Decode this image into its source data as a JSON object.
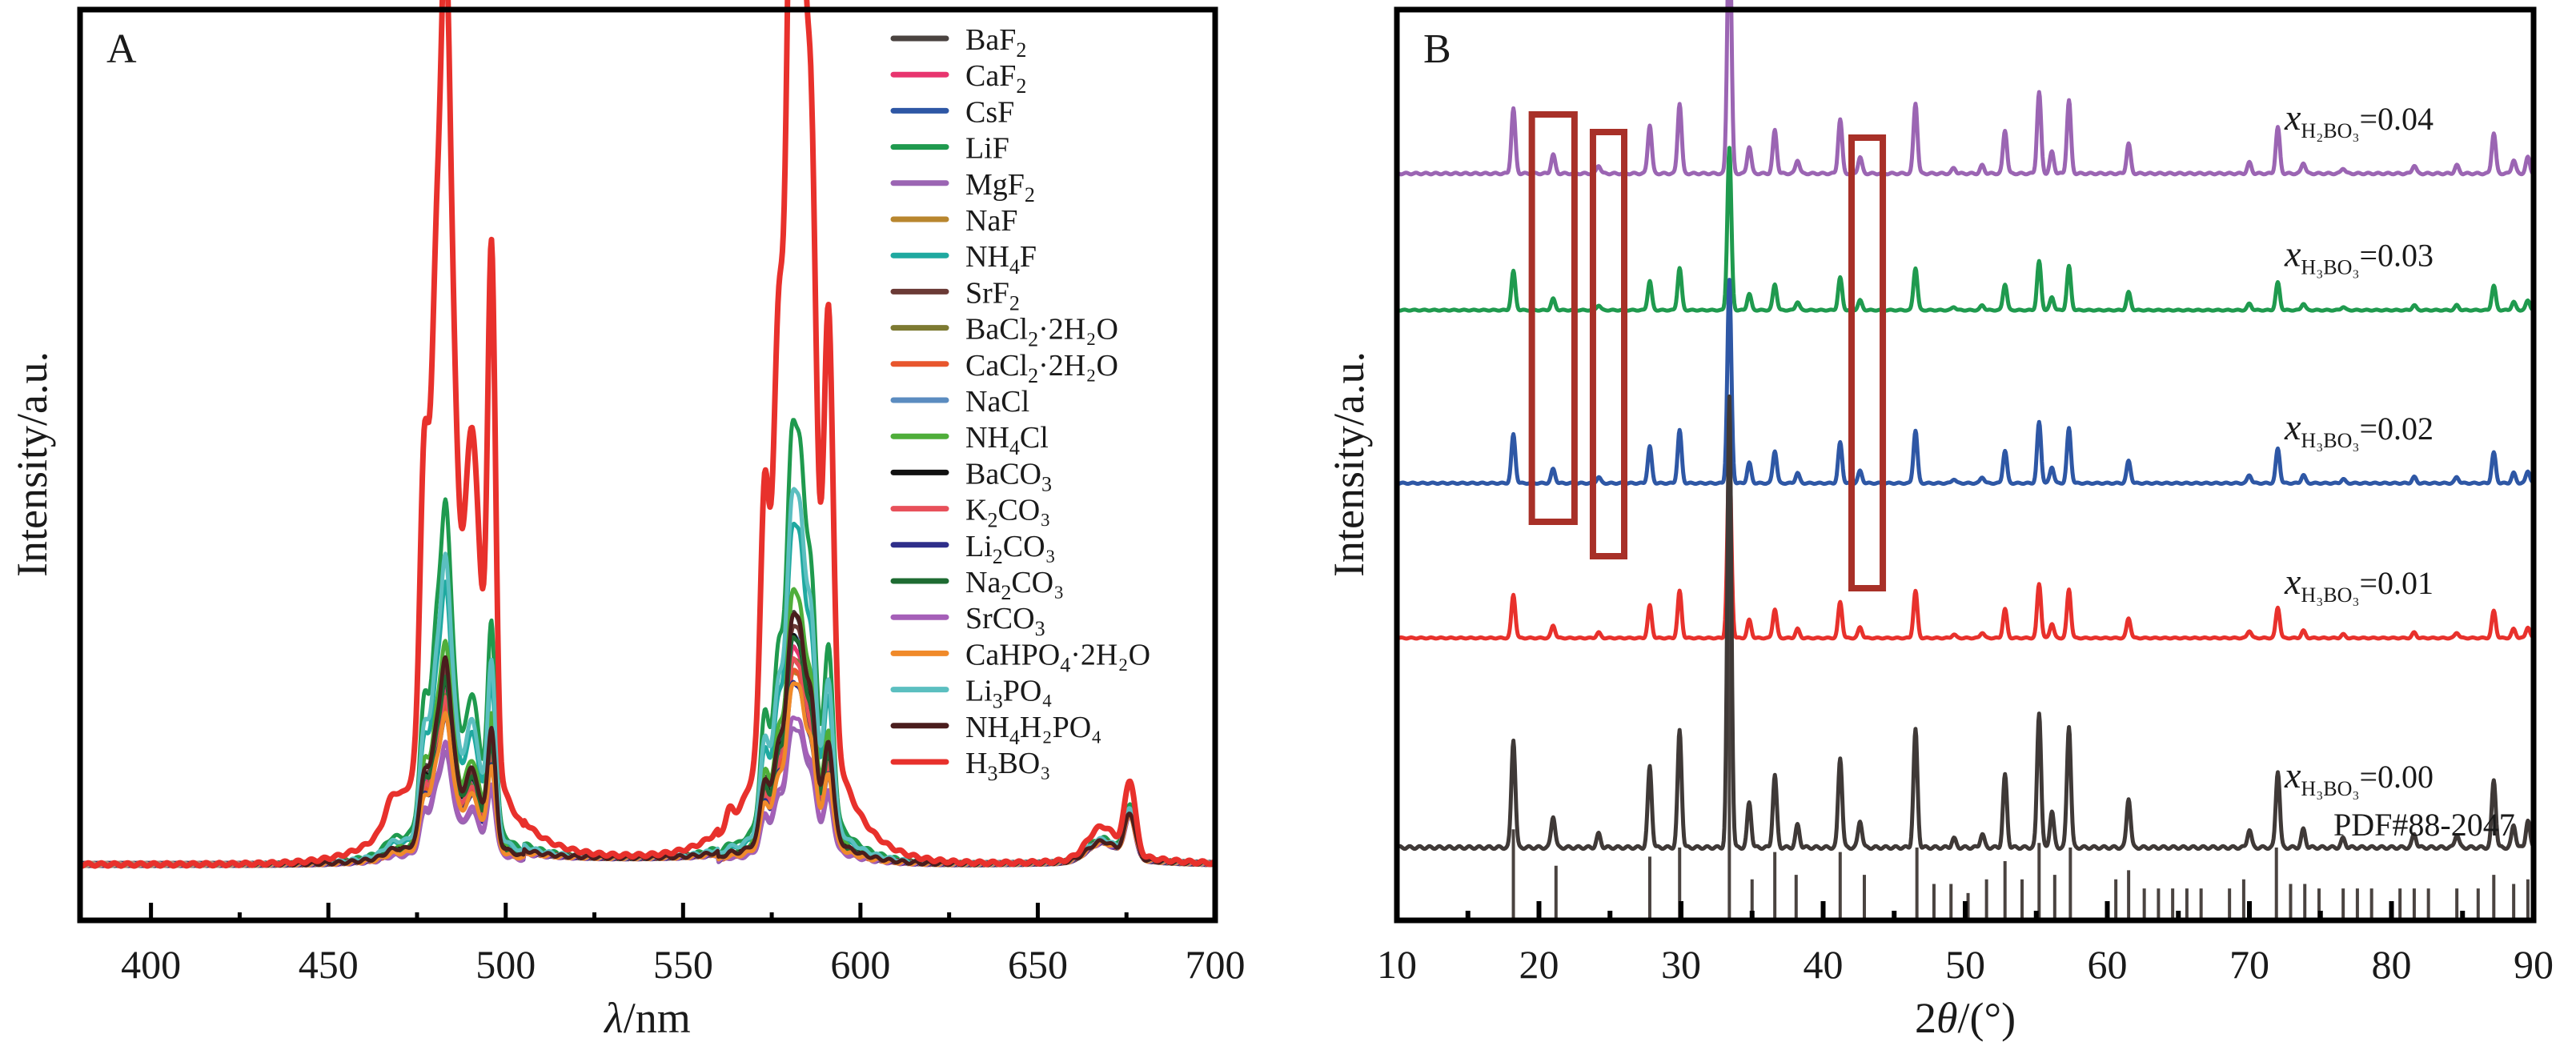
{
  "chart_data": [
    {
      "panel": "A",
      "type": "line",
      "xlabel": "λ/nm",
      "ylabel": "Intensity/a.u.",
      "xlim": [
        380,
        700
      ],
      "ylim": [
        0,
        1.0
      ],
      "x_ticks": [
        400,
        450,
        500,
        550,
        600,
        650,
        700
      ],
      "x_minor_ticks": [
        425,
        475,
        525,
        575,
        625,
        675
      ],
      "legend_position": "top-right",
      "grid": false,
      "baseline": 0.005,
      "series": [
        {
          "name": "BaF2",
          "label_main": "BaF",
          "label_sub": "2",
          "label_rest": "",
          "color": "#4a4340",
          "scale": 0.22
        },
        {
          "name": "CaF2",
          "label_main": "CaF",
          "label_sub": "2",
          "label_rest": "",
          "color": "#e8356f",
          "scale": 0.19
        },
        {
          "name": "CsF",
          "label_main": "CsF",
          "label_sub": "",
          "label_rest": "",
          "color": "#2e57a5",
          "scale": 0.2
        },
        {
          "name": "LiF",
          "label_main": "LiF",
          "label_sub": "",
          "label_rest": "",
          "color": "#1f9a4e",
          "scale": 0.39
        },
        {
          "name": "MgF2",
          "label_main": "MgF",
          "label_sub": "2",
          "label_rest": "",
          "color": "#9b65b3",
          "scale": 0.12
        },
        {
          "name": "NaF",
          "label_main": "NaF",
          "label_sub": "",
          "label_rest": "",
          "color": "#b8862e",
          "scale": 0.17
        },
        {
          "name": "NH4F",
          "label_main": "NH",
          "label_sub": "4",
          "label_rest": "F",
          "color": "#1fa9a0",
          "scale": 0.3
        },
        {
          "name": "SrF2",
          "label_main": "SrF",
          "label_sub": "2",
          "label_rest": "",
          "color": "#6b3a36",
          "scale": 0.21
        },
        {
          "name": "BaCl2·2H2O",
          "label_main": "BaCl",
          "label_sub": "2",
          "label_rest": "·2H₂O",
          "color": "#7d7a32",
          "scale": 0.18
        },
        {
          "name": "CaCl2·2H2O",
          "label_main": "CaCl",
          "label_sub": "2",
          "label_rest": "·2H₂O",
          "color": "#e8562d",
          "scale": 0.17
        },
        {
          "name": "NaCl",
          "label_main": "NaCl",
          "label_sub": "",
          "label_rest": "",
          "color": "#5b8cc0",
          "scale": 0.2
        },
        {
          "name": "NH4Cl",
          "label_main": "NH",
          "label_sub": "4",
          "label_rest": "Cl",
          "color": "#4fae3a",
          "scale": 0.24
        },
        {
          "name": "BaCO3",
          "label_main": "BaCO",
          "label_sub": "3",
          "label_rest": "",
          "color": "#111111",
          "scale": 0.2
        },
        {
          "name": "K2CO3",
          "label_main": "K",
          "label_sub": "2",
          "label_rest": "CO₃",
          "color": "#e8505a",
          "scale": 0.18
        },
        {
          "name": "Li2CO3",
          "label_main": "Li",
          "label_sub": "2",
          "label_rest": "CO₃",
          "color": "#2e2e8a",
          "scale": 0.16
        },
        {
          "name": "Na2CO3",
          "label_main": "Na",
          "label_sub": "2",
          "label_rest": "CO₃",
          "color": "#1e6b32",
          "scale": 0.2
        },
        {
          "name": "SrCO3",
          "label_main": "SrCO",
          "label_sub": "3",
          "label_rest": "",
          "color": "#a55fb8",
          "scale": 0.13
        },
        {
          "name": "CaHPO4·2H2O",
          "label_main": "CaHPO",
          "label_sub": "4",
          "label_rest": "·2H₂O",
          "color": "#f08a2a",
          "scale": 0.16
        },
        {
          "name": "Li3PO4",
          "label_main": "Li",
          "label_sub": "3",
          "label_rest": "PO₄",
          "color": "#5bbfc0",
          "scale": 0.33
        },
        {
          "name": "NH4H2PO4",
          "label_main": "NH",
          "label_sub": "4",
          "label_rest": "H₂PO₄",
          "color": "#4a1d1d",
          "scale": 0.22
        },
        {
          "name": "H3BO3",
          "label_main": "H",
          "label_sub": "3",
          "label_rest": "BO₃",
          "color": "#e8312c",
          "scale": 1.0
        }
      ],
      "peak_profile": [
        {
          "center": 468,
          "height": 0.03,
          "width": 2
        },
        {
          "center": 477,
          "height": 0.36,
          "width": 1.2
        },
        {
          "center": 480.5,
          "height": 0.56,
          "width": 1.5
        },
        {
          "center": 483,
          "height": 0.68,
          "width": 1.2
        },
        {
          "center": 485,
          "height": 0.4,
          "width": 1.5
        },
        {
          "center": 490.5,
          "height": 0.4,
          "width": 2.2
        },
        {
          "center": 496,
          "height": 0.64,
          "width": 1.1
        },
        {
          "center": 563,
          "height": 0.02,
          "width": 1
        },
        {
          "center": 573,
          "height": 0.32,
          "width": 1.2
        },
        {
          "center": 577,
          "height": 0.48,
          "width": 1.5
        },
        {
          "center": 580.5,
          "height": 0.96,
          "width": 1.3
        },
        {
          "center": 583,
          "height": 0.86,
          "width": 1.3
        },
        {
          "center": 586,
          "height": 0.7,
          "width": 1.5
        },
        {
          "center": 591,
          "height": 0.53,
          "width": 1.3
        },
        {
          "center": 668,
          "height": 0.04,
          "width": 4
        },
        {
          "center": 676,
          "height": 0.09,
          "width": 1.5
        }
      ]
    },
    {
      "panel": "B",
      "type": "line",
      "xlabel": "2θ/(°)",
      "ylabel": "Intensity/a.u.",
      "xlim": [
        10,
        90
      ],
      "x_ticks": [
        10,
        20,
        30,
        40,
        50,
        60,
        70,
        80,
        90
      ],
      "x_minor_ticks": [
        15,
        25,
        35,
        45,
        55,
        65,
        75,
        85
      ],
      "grid": false,
      "series": [
        {
          "name": "x(H2BO3)=0.04",
          "label_var": "x",
          "label_sub": "H₂BO₃",
          "label_value": "=0.04",
          "color": "#9b65b3",
          "offset": 0.82,
          "scale": 0.6
        },
        {
          "name": "x(H3BO3)=0.03",
          "label_var": "x",
          "label_sub": "H₃BO₃",
          "label_value": "=0.03",
          "color": "#1f9a4e",
          "offset": 0.67,
          "scale": 0.36
        },
        {
          "name": "x(H3BO3)=0.02",
          "label_var": "x",
          "label_sub": "H₃BO₃",
          "label_value": "=0.02",
          "color": "#2e57a5",
          "offset": 0.48,
          "scale": 0.45
        },
        {
          "name": "x(H3BO3)=0.01",
          "label_var": "x",
          "label_sub": "H₃BO₃",
          "label_value": "=0.01",
          "color": "#e8312c",
          "offset": 0.31,
          "scale": 0.4
        },
        {
          "name": "x(H3BO3)=0.00",
          "label_var": "x",
          "label_sub": "H₃BO₃",
          "label_value": "=0.00",
          "color": "#3f3937",
          "offset": 0.08,
          "scale": 1.0
        }
      ],
      "peaks": [
        {
          "two_theta": 18.2,
          "rel": 0.24
        },
        {
          "two_theta": 21.0,
          "rel": 0.07
        },
        {
          "two_theta": 24.2,
          "rel": 0.03
        },
        {
          "two_theta": 27.8,
          "rel": 0.18
        },
        {
          "two_theta": 29.9,
          "rel": 0.26
        },
        {
          "two_theta": 33.4,
          "rel": 1.0
        },
        {
          "two_theta": 34.8,
          "rel": 0.1
        },
        {
          "two_theta": 36.6,
          "rel": 0.16
        },
        {
          "two_theta": 38.2,
          "rel": 0.05
        },
        {
          "two_theta": 41.2,
          "rel": 0.2
        },
        {
          "two_theta": 42.6,
          "rel": 0.06
        },
        {
          "two_theta": 46.5,
          "rel": 0.26
        },
        {
          "two_theta": 49.2,
          "rel": 0.02
        },
        {
          "two_theta": 51.2,
          "rel": 0.03
        },
        {
          "two_theta": 52.8,
          "rel": 0.16
        },
        {
          "two_theta": 55.2,
          "rel": 0.3
        },
        {
          "two_theta": 56.1,
          "rel": 0.08
        },
        {
          "two_theta": 57.3,
          "rel": 0.27
        },
        {
          "two_theta": 61.5,
          "rel": 0.11
        },
        {
          "two_theta": 70.0,
          "rel": 0.04
        },
        {
          "two_theta": 72.0,
          "rel": 0.17
        },
        {
          "two_theta": 73.8,
          "rel": 0.04
        },
        {
          "two_theta": 76.6,
          "rel": 0.02
        },
        {
          "two_theta": 81.6,
          "rel": 0.03
        },
        {
          "two_theta": 84.6,
          "rel": 0.03
        },
        {
          "two_theta": 87.2,
          "rel": 0.15
        },
        {
          "two_theta": 88.6,
          "rel": 0.05
        },
        {
          "two_theta": 89.6,
          "rel": 0.06
        }
      ],
      "reference": {
        "label": "PDF#88-2047",
        "color": "#4a4340",
        "lines": [
          {
            "two_theta": 18.2,
            "rel": 0.2
          },
          {
            "two_theta": 21.2,
            "rel": 0.12
          },
          {
            "two_theta": 27.8,
            "rel": 0.14
          },
          {
            "two_theta": 29.9,
            "rel": 0.16
          },
          {
            "two_theta": 33.4,
            "rel": 1.0
          },
          {
            "two_theta": 35.0,
            "rel": 0.09
          },
          {
            "two_theta": 36.6,
            "rel": 0.15
          },
          {
            "two_theta": 38.1,
            "rel": 0.1
          },
          {
            "two_theta": 41.2,
            "rel": 0.15
          },
          {
            "two_theta": 42.9,
            "rel": 0.1
          },
          {
            "two_theta": 46.6,
            "rel": 0.16
          },
          {
            "two_theta": 47.8,
            "rel": 0.08
          },
          {
            "two_theta": 49.0,
            "rel": 0.08
          },
          {
            "two_theta": 50.2,
            "rel": 0.06
          },
          {
            "two_theta": 51.5,
            "rel": 0.09
          },
          {
            "two_theta": 52.8,
            "rel": 0.13
          },
          {
            "two_theta": 54.0,
            "rel": 0.09
          },
          {
            "two_theta": 55.2,
            "rel": 0.17
          },
          {
            "two_theta": 56.3,
            "rel": 0.1
          },
          {
            "two_theta": 57.4,
            "rel": 0.16
          },
          {
            "two_theta": 60.6,
            "rel": 0.09
          },
          {
            "two_theta": 61.5,
            "rel": 0.11
          },
          {
            "two_theta": 62.6,
            "rel": 0.07
          },
          {
            "two_theta": 63.6,
            "rel": 0.07
          },
          {
            "two_theta": 64.6,
            "rel": 0.07
          },
          {
            "two_theta": 65.6,
            "rel": 0.07
          },
          {
            "two_theta": 66.6,
            "rel": 0.07
          },
          {
            "two_theta": 68.6,
            "rel": 0.07
          },
          {
            "two_theta": 69.6,
            "rel": 0.09
          },
          {
            "two_theta": 71.9,
            "rel": 0.16
          },
          {
            "two_theta": 72.9,
            "rel": 0.08
          },
          {
            "two_theta": 73.9,
            "rel": 0.08
          },
          {
            "two_theta": 74.9,
            "rel": 0.07
          },
          {
            "two_theta": 76.6,
            "rel": 0.07
          },
          {
            "two_theta": 77.6,
            "rel": 0.07
          },
          {
            "two_theta": 78.6,
            "rel": 0.07
          },
          {
            "two_theta": 80.6,
            "rel": 0.07
          },
          {
            "two_theta": 81.6,
            "rel": 0.07
          },
          {
            "two_theta": 82.6,
            "rel": 0.07
          },
          {
            "two_theta": 84.6,
            "rel": 0.07
          },
          {
            "two_theta": 86.1,
            "rel": 0.07
          },
          {
            "two_theta": 87.2,
            "rel": 0.1
          },
          {
            "two_theta": 88.6,
            "rel": 0.08
          },
          {
            "two_theta": 89.6,
            "rel": 0.09
          }
        ]
      },
      "highlight_boxes": [
        {
          "x_range": [
            19.5,
            22.5
          ],
          "color": "#a83028"
        },
        {
          "x_range": [
            23.8,
            26.0
          ],
          "color": "#a83028"
        },
        {
          "x_range": [
            42.0,
            44.2
          ],
          "color": "#a83028"
        }
      ]
    }
  ],
  "panels": {
    "a_letter": "A",
    "b_letter": "B",
    "a_ylabel": "Intensity/a.u.",
    "b_ylabel": "Intensity/a.u.",
    "a_xlabel_var": "λ",
    "a_xlabel_unit": "/nm",
    "b_xlabel_pre": "2",
    "b_xlabel_var": "θ",
    "b_xlabel_unit": "/(°)"
  }
}
